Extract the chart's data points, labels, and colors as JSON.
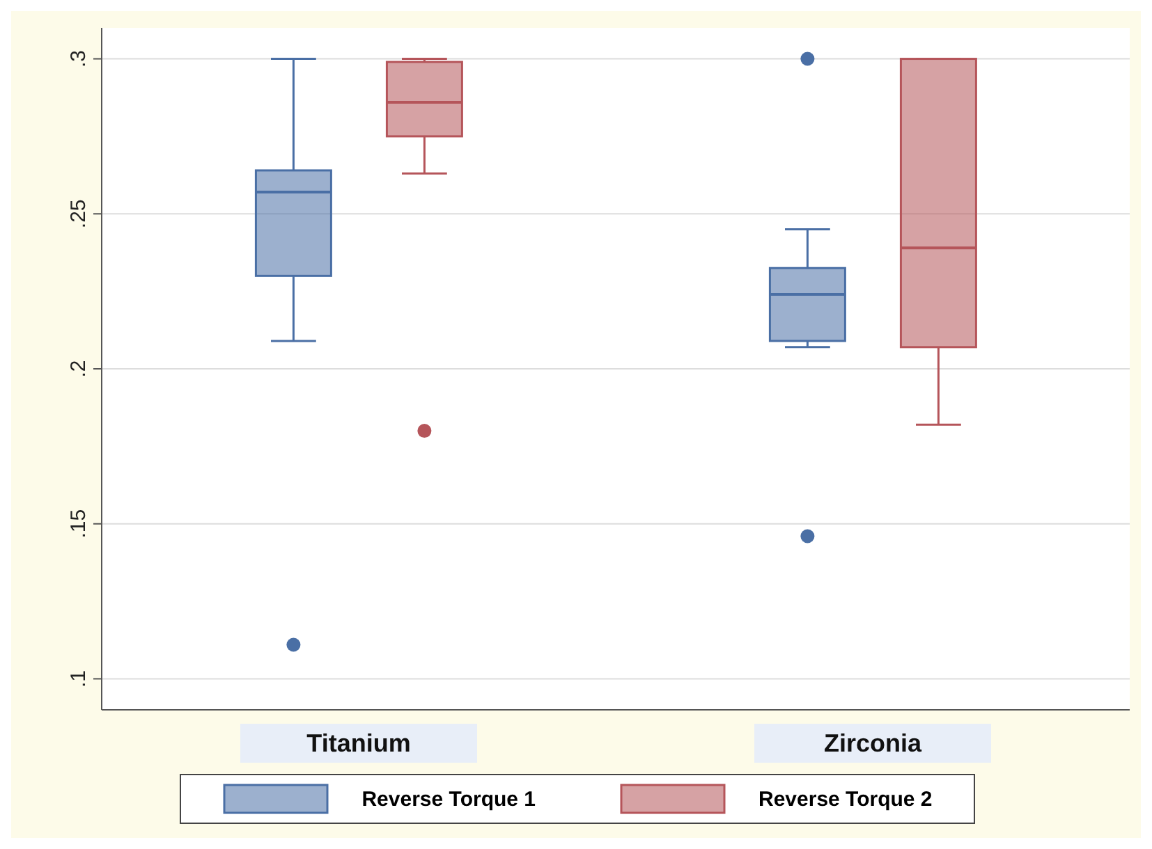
{
  "chart_data": {
    "type": "box",
    "categories": [
      "Titanium",
      "Zirconia"
    ],
    "series": [
      {
        "name": "Reverse Torque 1",
        "color": "#4a6fa5",
        "boxes": [
          {
            "low": 0.209,
            "q1": 0.23,
            "median": 0.257,
            "q3": 0.264,
            "high": 0.3,
            "outliers": [
              0.111
            ]
          },
          {
            "low": 0.207,
            "q1": 0.209,
            "median": 0.224,
            "q3": 0.2325,
            "high": 0.245,
            "outliers": [
              0.3,
              0.146
            ]
          }
        ]
      },
      {
        "name": "Reverse Torque 2",
        "color": "#b5555a",
        "boxes": [
          {
            "low": 0.263,
            "q1": 0.275,
            "median": 0.286,
            "q3": 0.299,
            "high": 0.3,
            "outliers": [
              0.18
            ]
          },
          {
            "low": 0.182,
            "q1": 0.207,
            "median": 0.239,
            "q3": 0.3,
            "high": 0.3
          }
        ]
      }
    ],
    "ylim": [
      0.09,
      0.31
    ],
    "yticks": [
      {
        "value": 0.1,
        "label": ".1"
      },
      {
        "value": 0.15,
        "label": ".15"
      },
      {
        "value": 0.2,
        "label": ".2"
      },
      {
        "value": 0.25,
        "label": ".25"
      },
      {
        "value": 0.3,
        "label": ".3"
      }
    ],
    "grid": "y",
    "legend": "bottom"
  }
}
